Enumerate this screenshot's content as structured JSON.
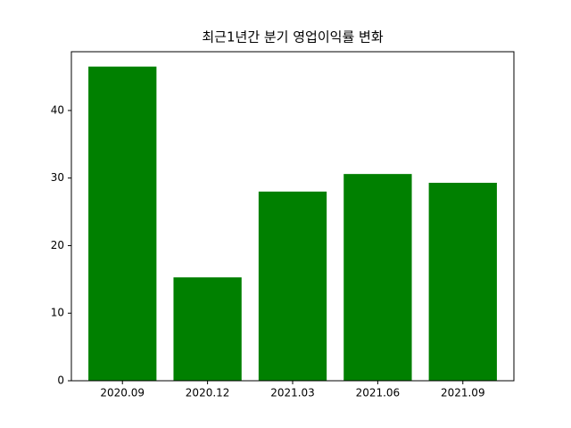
{
  "chart_data": {
    "type": "bar",
    "title": "최근1년간 분기 영업이익률 변화",
    "categories": [
      "2020.09",
      "2020.12",
      "2021.03",
      "2021.06",
      "2021.09"
    ],
    "values": [
      46.5,
      15.3,
      28.0,
      30.6,
      29.3
    ],
    "color": "#008000",
    "ylim": [
      0,
      48.7
    ],
    "yticks": [
      0,
      10,
      20,
      30,
      40
    ],
    "grid": false
  }
}
